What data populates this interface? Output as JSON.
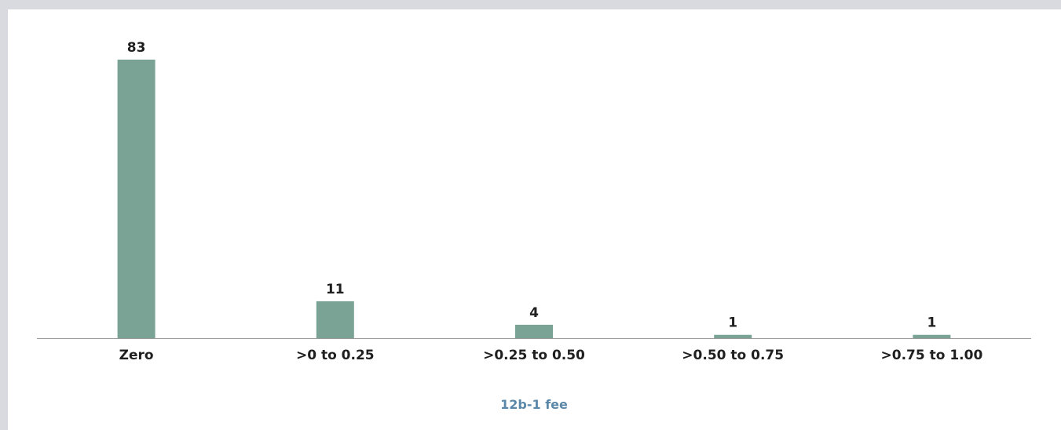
{
  "chart_data": {
    "type": "bar",
    "categories": [
      "Zero",
      ">0 to 0.25",
      ">0.25 to 0.50",
      ">0.50 to 0.75",
      ">0.75 to 1.00"
    ],
    "values": [
      83,
      11,
      4,
      1,
      1
    ],
    "title": "",
    "xlabel": "12b-1 fee",
    "ylabel": "",
    "ylim": [
      0,
      83
    ],
    "grid": false,
    "data_labels": true,
    "colors": {
      "bar": "#7aa395",
      "axis": "#9b9b9b",
      "xlabel": "#5b87a8"
    }
  }
}
